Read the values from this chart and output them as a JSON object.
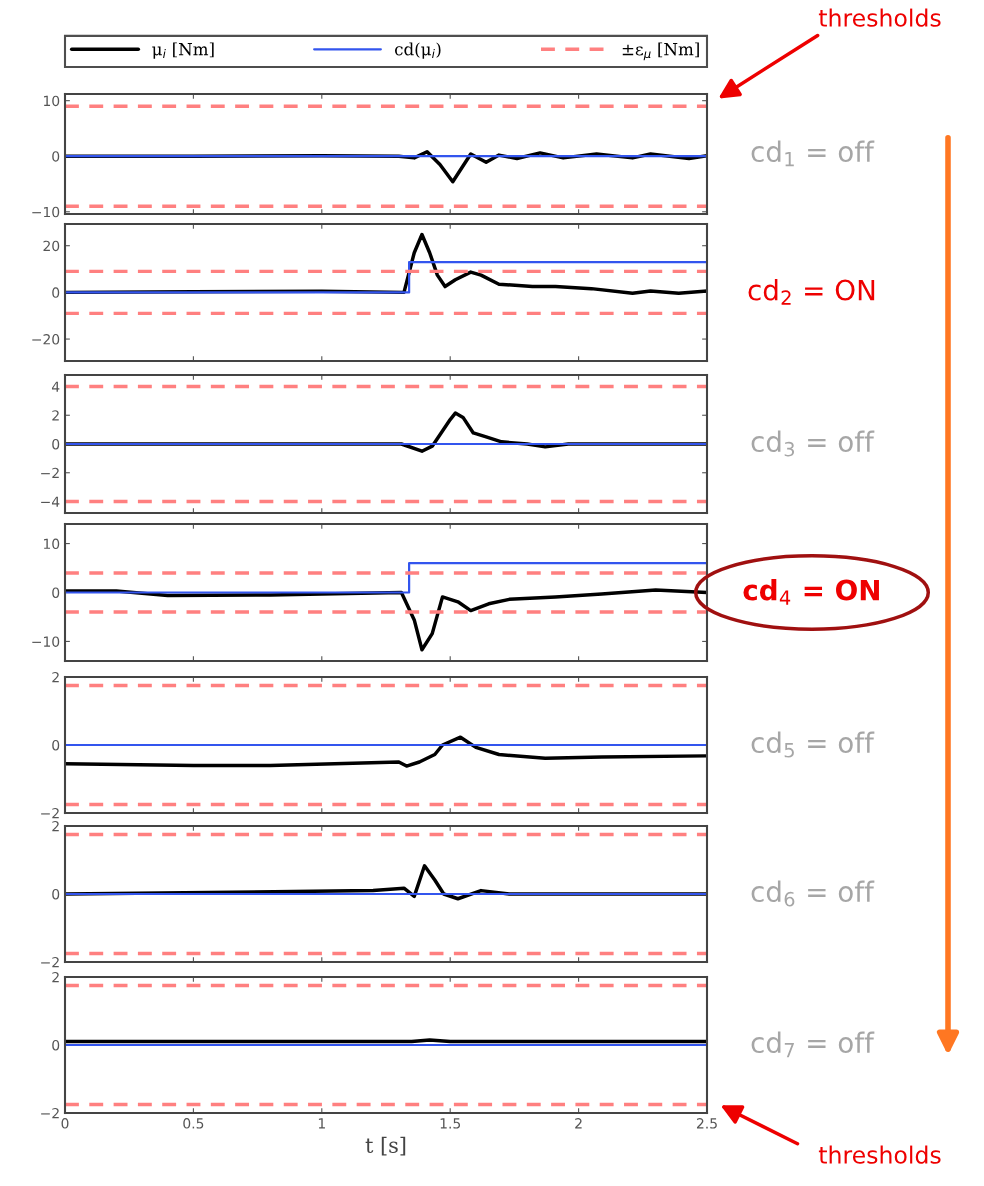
{
  "chart_data": [
    {
      "type": "line",
      "xlim": [
        0,
        2.5
      ],
      "xticks": [
        0,
        0.5,
        1,
        1.5,
        2,
        2.5
      ],
      "ylim": [
        -10.4,
        11.2
      ],
      "yticks": [
        -10,
        0,
        10
      ],
      "tick_labels": "y",
      "legend": "top",
      "series": [
        {
          "name": "μ$_{i}$ [Nm]",
          "color": "#000000",
          "x": [
            0,
            0.5,
            1.0,
            1.3,
            1.36,
            1.41,
            1.46,
            1.51,
            1.58,
            1.64,
            1.69,
            1.76,
            1.85,
            1.94,
            2.07,
            2.21,
            2.28,
            2.43,
            2.5
          ],
          "values": [
            0,
            0,
            0.1,
            0,
            -0.3,
            0.8,
            -1.5,
            -4.6,
            0.4,
            -1.1,
            0.2,
            -0.4,
            0.6,
            -0.3,
            0.4,
            -0.3,
            0.4,
            -0.4,
            0.1
          ]
        },
        {
          "name": "cd(μ$_{i}$)",
          "color": "#3355ee",
          "x": [
            0,
            2.5
          ],
          "values": [
            0,
            0
          ]
        },
        {
          "name": "±ε$_{μ}$ [Nm]",
          "color": "#ff8080",
          "line_style": "dashed",
          "x": [
            0,
            2.5
          ],
          "values": [
            9,
            9
          ]
        },
        {
          "color": "#ff8080",
          "line_style": "dashed",
          "x": [
            0,
            2.5
          ],
          "values": [
            -9,
            -9
          ]
        }
      ],
      "annotations": [
        "cd$_{1}$ = off",
        "thresholds"
      ]
    },
    {
      "type": "line",
      "xlim": [
        0,
        2.5
      ],
      "xticks": [
        0,
        0.5,
        1,
        1.5,
        2,
        2.5
      ],
      "ylim": [
        -29.4,
        29.3
      ],
      "yticks": [
        -20,
        0,
        20
      ],
      "tick_labels": "y",
      "series": [
        {
          "color": "#000000",
          "x": [
            0,
            0.5,
            1.0,
            1.32,
            1.36,
            1.39,
            1.42,
            1.45,
            1.48,
            1.52,
            1.58,
            1.62,
            1.69,
            1.82,
            1.91,
            2.05,
            2.21,
            2.28,
            2.39,
            2.5
          ],
          "values": [
            0,
            0.3,
            0.5,
            0,
            17,
            24.8,
            17,
            7.4,
            2.5,
            5.4,
            8.7,
            7.4,
            3.5,
            2.5,
            2.5,
            1.6,
            -0.4,
            0.6,
            -0.4,
            0.6
          ]
        },
        {
          "color": "#3355ee",
          "x": [
            0,
            1.34,
            1.34,
            2.5
          ],
          "values": [
            0,
            0,
            13,
            13
          ]
        },
        {
          "color": "#ff8080",
          "line_style": "dashed",
          "x": [
            0,
            2.5
          ],
          "values": [
            9,
            9
          ]
        },
        {
          "color": "#ff8080",
          "line_style": "dashed",
          "x": [
            0,
            2.5
          ],
          "values": [
            -9,
            -9
          ]
        }
      ],
      "annotations": [
        "cd$_{2}$ = ON"
      ]
    },
    {
      "type": "line",
      "xlim": [
        0,
        2.5
      ],
      "xticks": [
        0,
        0.5,
        1,
        1.5,
        2,
        2.5
      ],
      "ylim": [
        -4.8,
        4.8
      ],
      "yticks": [
        -4,
        -2,
        0,
        2,
        4
      ],
      "tick_labels": "y",
      "series": [
        {
          "color": "#000000",
          "x": [
            0,
            1.31,
            1.39,
            1.43,
            1.5,
            1.52,
            1.55,
            1.59,
            1.64,
            1.7,
            1.8,
            1.87,
            1.96,
            2.5
          ],
          "values": [
            0,
            0,
            -0.5,
            -0.15,
            1.7,
            2.15,
            1.85,
            0.77,
            0.5,
            0.15,
            0,
            -0.2,
            0,
            0
          ]
        },
        {
          "color": "#3355ee",
          "x": [
            0,
            2.5
          ],
          "values": [
            0,
            0
          ]
        },
        {
          "color": "#ff8080",
          "line_style": "dashed",
          "x": [
            0,
            2.5
          ],
          "values": [
            4,
            4
          ]
        },
        {
          "color": "#ff8080",
          "line_style": "dashed",
          "x": [
            0,
            2.5
          ],
          "values": [
            -4,
            -4
          ]
        }
      ],
      "annotations": [
        "cd$_{3}$ = off"
      ]
    },
    {
      "type": "line",
      "xlim": [
        0,
        2.5
      ],
      "xticks": [
        0,
        0.5,
        1,
        1.5,
        2,
        2.5
      ],
      "ylim": [
        -14,
        14
      ],
      "yticks": [
        -10,
        0,
        10
      ],
      "tick_labels": "y",
      "series": [
        {
          "color": "#000000",
          "x": [
            0,
            0.2,
            0.4,
            0.8,
            1.0,
            1.31,
            1.36,
            1.39,
            1.43,
            1.47,
            1.53,
            1.58,
            1.65,
            1.73,
            1.91,
            2.09,
            2.3,
            2.5
          ],
          "values": [
            0.3,
            0.3,
            -0.6,
            -0.5,
            -0.3,
            0,
            -5.6,
            -11.7,
            -8.4,
            -0.9,
            -1.9,
            -3.7,
            -2.3,
            -1.4,
            -0.9,
            -0.3,
            0.5,
            0
          ]
        },
        {
          "color": "#3355ee",
          "x": [
            0,
            1.34,
            1.34,
            2.5
          ],
          "values": [
            0,
            0,
            6,
            6
          ]
        },
        {
          "color": "#ff8080",
          "line_style": "dashed",
          "x": [
            0,
            2.5
          ],
          "values": [
            4,
            4
          ]
        },
        {
          "color": "#ff8080",
          "line_style": "dashed",
          "x": [
            0,
            2.5
          ],
          "values": [
            -4,
            -4
          ]
        }
      ],
      "annotations": [
        "cd$_{4}$ = ON"
      ]
    },
    {
      "type": "line",
      "xlim": [
        0,
        2.5
      ],
      "xticks": [
        0,
        0.5,
        1,
        1.5,
        2,
        2.5
      ],
      "ylim": [
        -2,
        2
      ],
      "yticks": [
        -2,
        0,
        2
      ],
      "tick_labels": "y",
      "series": [
        {
          "color": "#000000",
          "x": [
            0,
            0.5,
            0.8,
            1.3,
            1.33,
            1.38,
            1.44,
            1.47,
            1.54,
            1.6,
            1.69,
            1.87,
            2.09,
            2.5
          ],
          "values": [
            -0.55,
            -0.6,
            -0.6,
            -0.5,
            -0.62,
            -0.5,
            -0.28,
            0,
            0.23,
            -0.07,
            -0.28,
            -0.39,
            -0.35,
            -0.32
          ]
        },
        {
          "color": "#3355ee",
          "x": [
            0,
            2.5
          ],
          "values": [
            0,
            0
          ]
        },
        {
          "color": "#ff8080",
          "line_style": "dashed",
          "x": [
            0,
            2.5
          ],
          "values": [
            1.75,
            1.75
          ]
        },
        {
          "color": "#ff8080",
          "line_style": "dashed",
          "x": [
            0,
            2.5
          ],
          "values": [
            -1.75,
            -1.75
          ]
        }
      ],
      "annotations": [
        "cd$_{5}$ = off"
      ]
    },
    {
      "type": "line",
      "xlim": [
        0,
        2.5
      ],
      "xticks": [
        0,
        0.5,
        1,
        1.5,
        2,
        2.5
      ],
      "ylim": [
        -2,
        2
      ],
      "yticks": [
        -2,
        0,
        2
      ],
      "tick_labels": "y",
      "series": [
        {
          "color": "#000000",
          "x": [
            0,
            1.2,
            1.32,
            1.36,
            1.4,
            1.44,
            1.475,
            1.53,
            1.62,
            1.73,
            2.5
          ],
          "values": [
            0,
            0.1,
            0.17,
            -0.07,
            0.83,
            0.41,
            0,
            -0.14,
            0.1,
            0,
            0
          ]
        },
        {
          "color": "#3355ee",
          "x": [
            0,
            2.5
          ],
          "values": [
            0,
            0
          ]
        },
        {
          "color": "#ff8080",
          "line_style": "dashed",
          "x": [
            0,
            2.5
          ],
          "values": [
            1.75,
            1.75
          ]
        },
        {
          "color": "#ff8080",
          "line_style": "dashed",
          "x": [
            0,
            2.5
          ],
          "values": [
            -1.75,
            -1.75
          ]
        }
      ],
      "annotations": [
        "cd$_{6}$ = off"
      ]
    },
    {
      "type": "line",
      "xlim": [
        0,
        2.5
      ],
      "xticks": [
        0,
        0.5,
        1,
        1.5,
        2,
        2.5
      ],
      "ylim": [
        -2,
        2
      ],
      "yticks": [
        -2,
        0,
        2
      ],
      "xlabel": "t [s]",
      "series": [
        {
          "color": "#000000",
          "x": [
            0,
            1.35,
            1.42,
            1.5,
            2.5
          ],
          "values": [
            0.1,
            0.1,
            0.15,
            0.1,
            0.1
          ]
        },
        {
          "color": "#3355ee",
          "x": [
            0,
            2.5
          ],
          "values": [
            0,
            0
          ]
        },
        {
          "color": "#ff8080",
          "line_style": "dashed",
          "x": [
            0,
            2.5
          ],
          "values": [
            1.75,
            1.75
          ]
        },
        {
          "color": "#ff8080",
          "line_style": "dashed",
          "x": [
            0,
            2.5
          ],
          "values": [
            -1.75,
            -1.75
          ]
        }
      ],
      "annotations": [
        "cd$_{7}$ = off",
        "thresholds"
      ]
    }
  ]
}
